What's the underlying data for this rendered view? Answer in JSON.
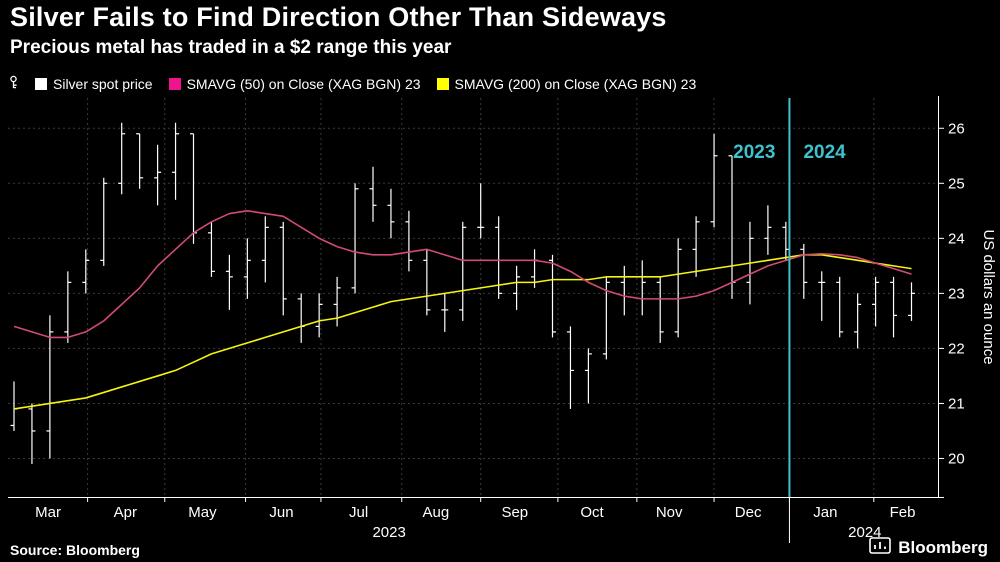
{
  "header": {
    "title": "Silver Fails to Find Direction Other Than Sideways",
    "subtitle": "Precious metal has traded in a $2 range this year"
  },
  "legend": {
    "items": [
      {
        "label": "Silver spot price",
        "color": "#ffffff"
      },
      {
        "label": "SMAVG (50) on Close (XAG BGN) 23",
        "color": "#f0148c"
      },
      {
        "label": "SMAVG (200) on Close (XAG BGN) 23",
        "color": "#ffff00"
      }
    ]
  },
  "footer": {
    "source": "Source: Bloomberg",
    "brand": "Bloomberg"
  },
  "chart_data": {
    "type": "line",
    "subtype": "ohlc-bars-with-moving-averages",
    "title": "Silver Fails to Find Direction Other Than Sideways",
    "ylabel": "US dollars an ounce",
    "ylim": [
      19.3,
      26.55
    ],
    "yticks": [
      20,
      21,
      22,
      23,
      24,
      25,
      26
    ],
    "grid": true,
    "legend_position": "top-left",
    "x_unit": "weekly samples, Mar 2023 - Feb 2024",
    "month_labels": [
      {
        "label": "Mar",
        "week": 1.9
      },
      {
        "label": "Apr",
        "week": 6.2
      },
      {
        "label": "May",
        "week": 10.5
      },
      {
        "label": "Jun",
        "week": 14.9
      },
      {
        "label": "Jul",
        "week": 19.2
      },
      {
        "label": "Aug",
        "week": 23.5
      },
      {
        "label": "Sep",
        "week": 27.9
      },
      {
        "label": "Oct",
        "week": 32.2
      },
      {
        "label": "Nov",
        "week": 36.5
      },
      {
        "label": "Dec",
        "week": 40.9
      },
      {
        "label": "Jan",
        "week": 45.2
      },
      {
        "label": "Feb",
        "week": 49.5
      }
    ],
    "month_gridlines_weeks": [
      4.1,
      8.4,
      12.9,
      17.1,
      21.6,
      26.0,
      30.3,
      34.7,
      39.0,
      43.2,
      47.9
    ],
    "year_labels": [
      {
        "label": "2023",
        "week": 20.9
      },
      {
        "label": "2024",
        "week": 47.4
      }
    ],
    "year_divider": {
      "week": 43.2,
      "color": "#3fc1ce",
      "left_label": "2023",
      "right_label": "2024"
    },
    "series": [
      {
        "name": "Silver spot price",
        "render": "ohlc",
        "color": "#ffffff",
        "high": [
          21.4,
          21.0,
          22.6,
          23.4,
          23.8,
          25.1,
          26.1,
          25.9,
          25.7,
          26.1,
          25.9,
          24.3,
          23.7,
          24.0,
          24.4,
          24.3,
          23.0,
          23.0,
          23.3,
          25.0,
          25.3,
          24.9,
          24.5,
          23.8,
          23.0,
          24.3,
          25.0,
          24.4,
          23.5,
          23.8,
          23.7,
          22.4,
          22.0,
          23.3,
          23.5,
          23.6,
          23.3,
          24.0,
          24.4,
          25.9,
          25.5,
          24.3,
          24.6,
          24.3,
          23.9,
          23.4,
          23.3,
          23.0,
          23.3,
          23.3,
          23.2
        ],
        "low": [
          20.5,
          19.9,
          20.0,
          22.1,
          23.0,
          23.5,
          24.8,
          24.9,
          24.6,
          24.7,
          23.9,
          23.3,
          22.7,
          22.9,
          23.2,
          22.6,
          22.1,
          22.2,
          22.4,
          23.0,
          24.3,
          24.0,
          23.4,
          22.6,
          22.3,
          22.5,
          24.0,
          22.9,
          22.7,
          23.1,
          22.2,
          20.9,
          21.0,
          21.8,
          22.6,
          22.6,
          22.1,
          22.2,
          23.3,
          24.2,
          22.9,
          22.8,
          23.7,
          23.6,
          22.9,
          22.5,
          22.2,
          22.0,
          22.4,
          22.2,
          22.5
        ],
        "close": [
          20.9,
          20.5,
          22.3,
          23.2,
          23.6,
          25.0,
          25.9,
          25.1,
          25.2,
          25.9,
          24.1,
          23.4,
          23.3,
          23.6,
          24.2,
          22.9,
          22.4,
          22.8,
          23.1,
          24.9,
          24.6,
          24.3,
          23.6,
          22.7,
          22.7,
          24.2,
          24.2,
          23.0,
          23.3,
          23.6,
          22.3,
          21.6,
          21.9,
          23.2,
          23.3,
          23.2,
          22.3,
          23.8,
          24.3,
          25.5,
          23.2,
          24.0,
          24.2,
          23.8,
          23.2,
          23.2,
          22.3,
          22.8,
          23.2,
          22.6,
          23.0
        ]
      },
      {
        "name": "SMAVG (50) on Close (XAG BGN)",
        "render": "line",
        "color": "#d14b74",
        "values": [
          22.4,
          22.3,
          22.2,
          22.2,
          22.3,
          22.5,
          22.8,
          23.1,
          23.5,
          23.8,
          24.1,
          24.3,
          24.45,
          24.5,
          24.45,
          24.4,
          24.2,
          24.0,
          23.85,
          23.75,
          23.7,
          23.7,
          23.75,
          23.8,
          23.7,
          23.6,
          23.6,
          23.6,
          23.6,
          23.6,
          23.55,
          23.4,
          23.2,
          23.05,
          22.95,
          22.9,
          22.9,
          22.9,
          22.95,
          23.05,
          23.2,
          23.35,
          23.5,
          23.6,
          23.7,
          23.72,
          23.7,
          23.65,
          23.55,
          23.45,
          23.35
        ]
      },
      {
        "name": "SMAVG (200) on Close (XAG BGN)",
        "render": "line",
        "color": "#f5f50f",
        "values": [
          20.9,
          20.95,
          21.0,
          21.05,
          21.1,
          21.2,
          21.3,
          21.4,
          21.5,
          21.6,
          21.75,
          21.9,
          22.0,
          22.1,
          22.2,
          22.3,
          22.4,
          22.5,
          22.55,
          22.65,
          22.75,
          22.85,
          22.9,
          22.95,
          23.0,
          23.05,
          23.1,
          23.15,
          23.2,
          23.2,
          23.25,
          23.25,
          23.25,
          23.3,
          23.3,
          23.3,
          23.3,
          23.35,
          23.4,
          23.45,
          23.5,
          23.55,
          23.6,
          23.65,
          23.7,
          23.7,
          23.65,
          23.6,
          23.55,
          23.5,
          23.45
        ]
      }
    ]
  }
}
